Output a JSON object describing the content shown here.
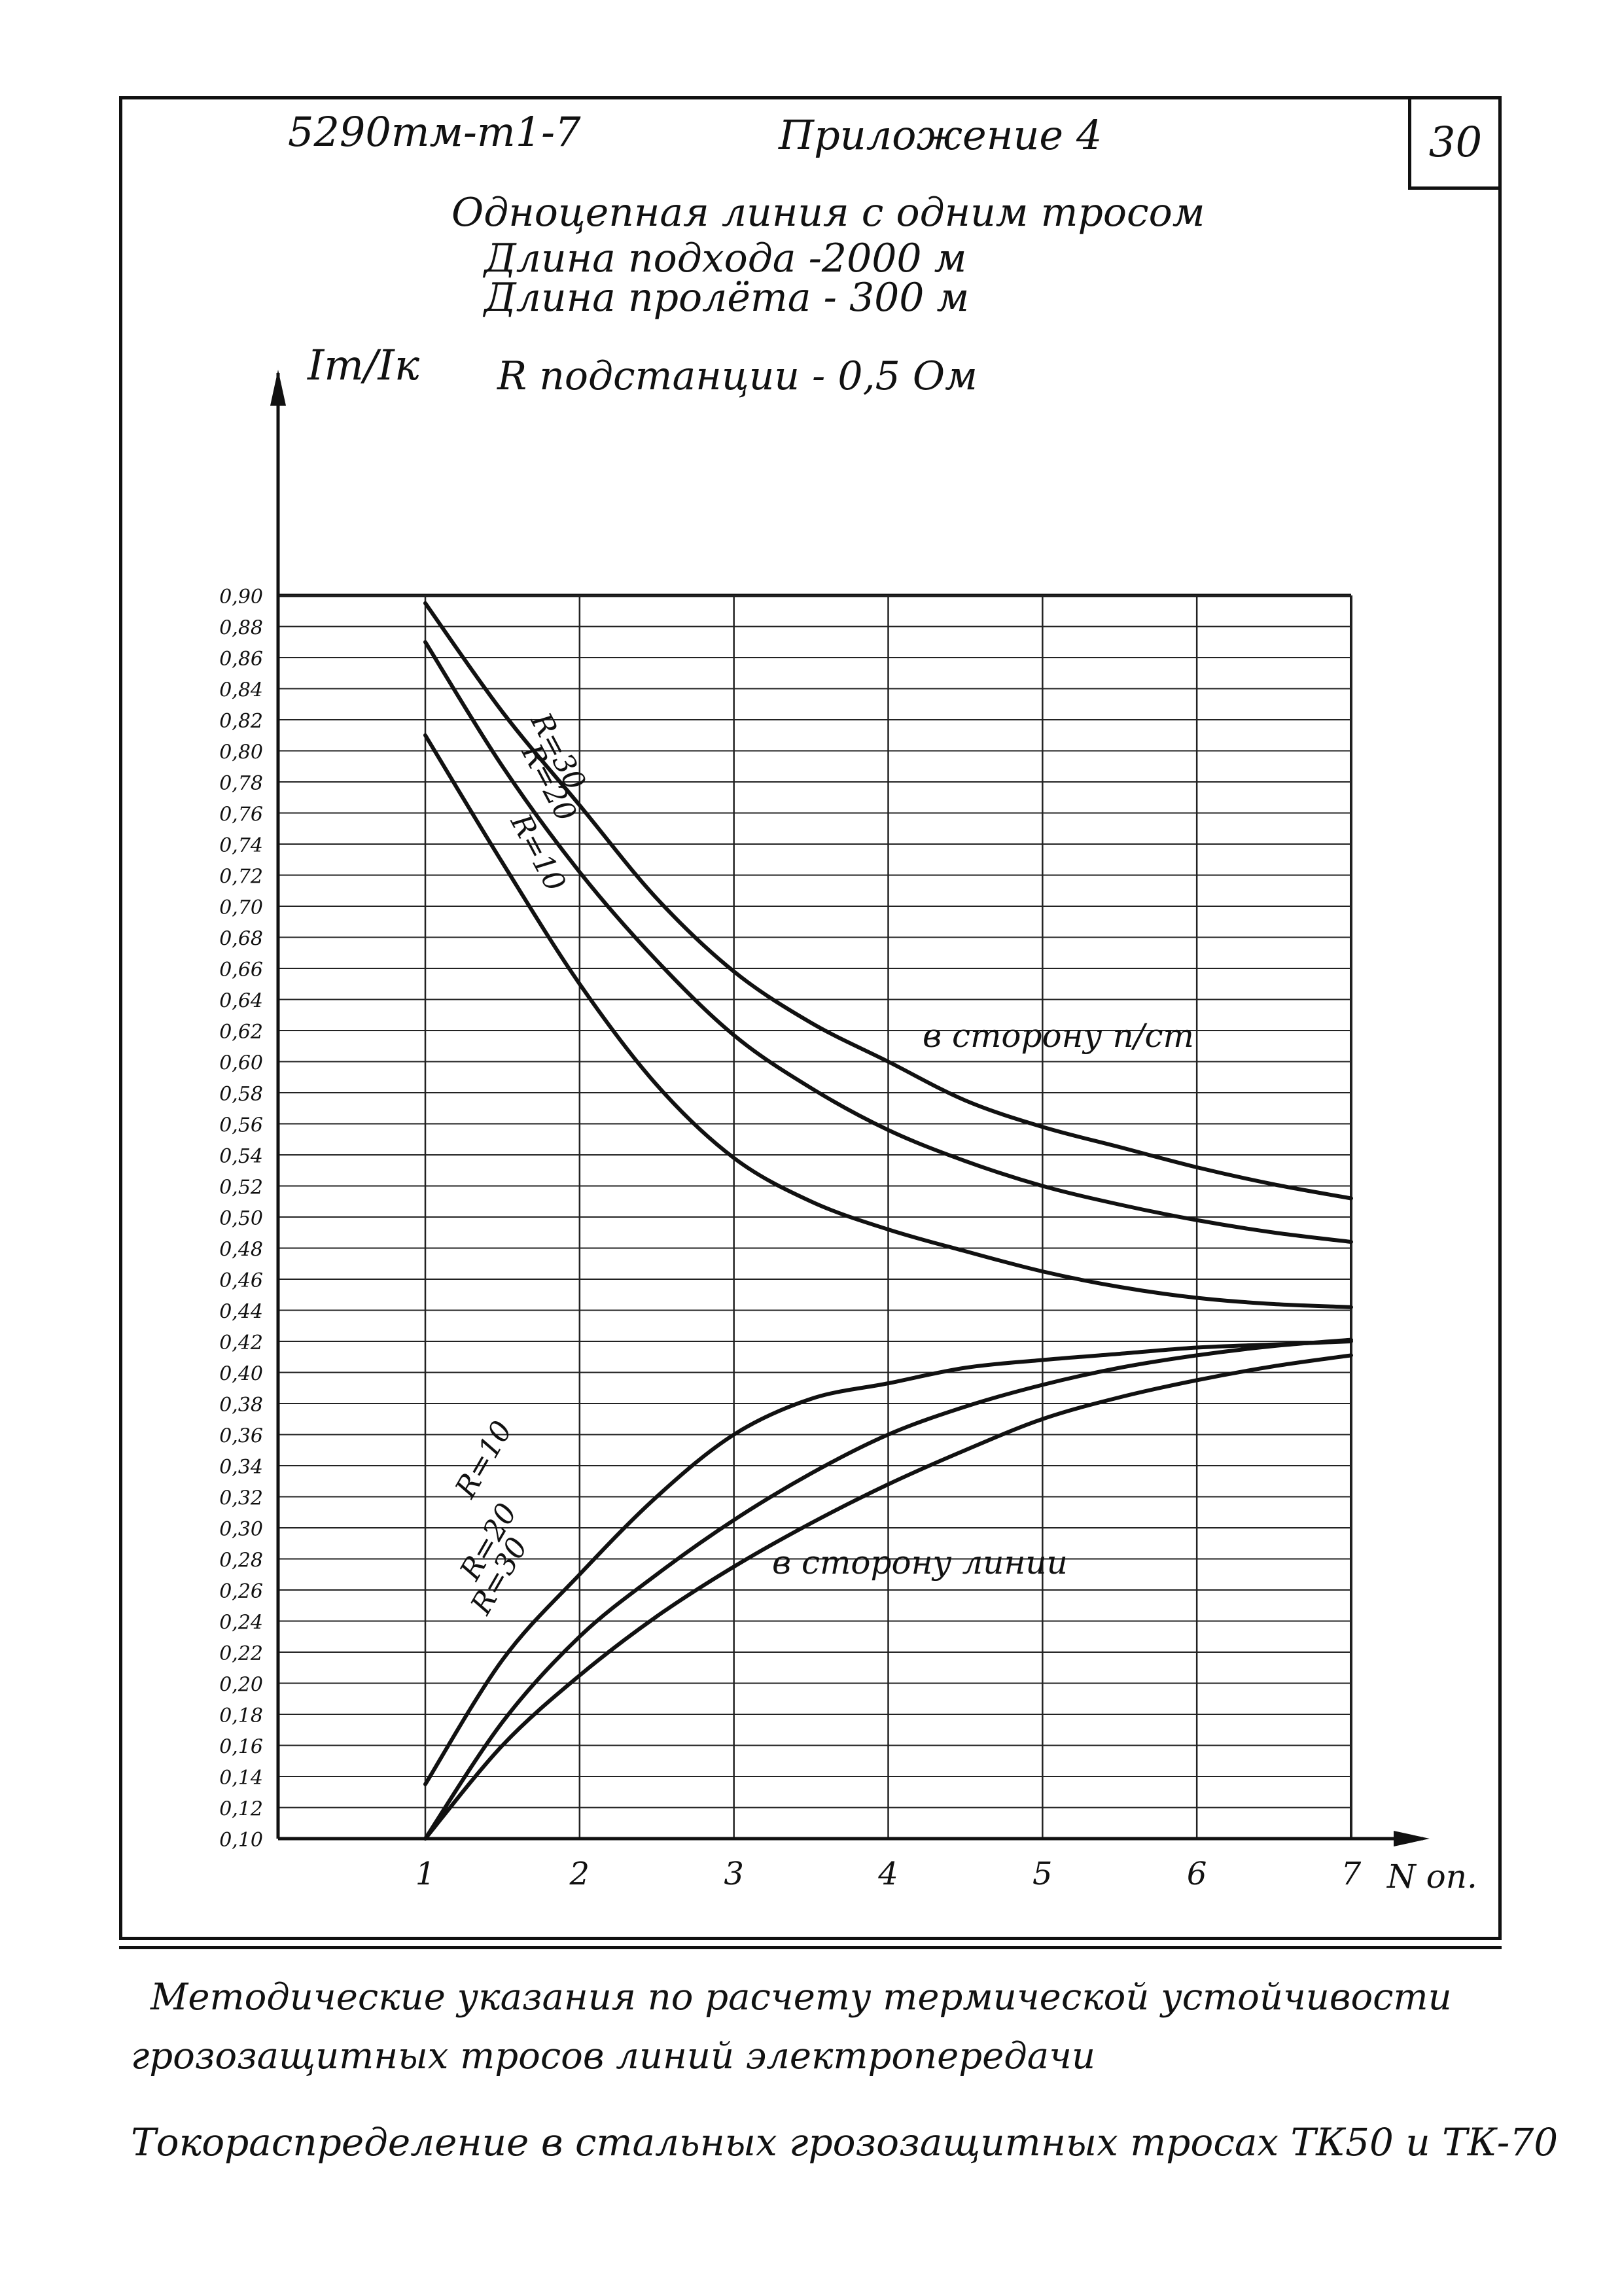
{
  "header": {
    "doc_code": "5290тм-т1-7",
    "appendix": "Приложение 4",
    "sheet_number": "30"
  },
  "title": {
    "line1": "Одноцепная линия с одним тросом",
    "line2": "Длина подхода -2000 м",
    "line3": "Длина пролёта - 300 м",
    "substation": "R подстанции - 0,5 Ом"
  },
  "chart_data": {
    "type": "line",
    "ylabel": "Iт/Iк",
    "xlabel": "N оп.",
    "xlim": [
      1,
      7
    ],
    "ylim": [
      0.1,
      0.9
    ],
    "x_ticks": [
      "1",
      "2",
      "3",
      "4",
      "5",
      "6",
      "7"
    ],
    "y_ticks": [
      "0,10",
      "0,12",
      "0,14",
      "0,16",
      "0,18",
      "0,20",
      "0,22",
      "0,24",
      "0,26",
      "0,28",
      "0,30",
      "0,32",
      "0,34",
      "0,36",
      "0,38",
      "0,40",
      "0,42",
      "0,44",
      "0,46",
      "0,48",
      "0,50",
      "0,52",
      "0,54",
      "0,56",
      "0,58",
      "0,60",
      "0,62",
      "0,64",
      "0,66",
      "0,68",
      "0,70",
      "0,72",
      "0,74",
      "0,76",
      "0,78",
      "0,80",
      "0,82",
      "0,84",
      "0,86",
      "0,88",
      "0,90"
    ],
    "grid": true,
    "x": [
      1,
      1.5,
      2,
      2.5,
      3,
      3.5,
      4,
      4.5,
      5,
      5.5,
      6,
      6.5,
      7
    ],
    "groups": [
      {
        "label": "в сторону п/ст",
        "series": [
          {
            "name": "R=30",
            "values": [
              0.895,
              0.825,
              0.765,
              0.705,
              0.658,
              0.625,
              0.6,
              0.575,
              0.558,
              0.545,
              0.532,
              0.521,
              0.512
            ]
          },
          {
            "name": "R=20",
            "values": [
              0.87,
              0.79,
              0.722,
              0.665,
              0.617,
              0.583,
              0.556,
              0.536,
              0.52,
              0.508,
              0.498,
              0.49,
              0.484
            ]
          },
          {
            "name": "R=10",
            "values": [
              0.81,
              0.728,
              0.65,
              0.585,
              0.538,
              0.51,
              0.492,
              0.478,
              0.465,
              0.455,
              0.448,
              0.444,
              0.442
            ]
          }
        ]
      },
      {
        "label": "в сторону линии",
        "series": [
          {
            "name": "R=10",
            "values": [
              0.135,
              0.215,
              0.27,
              0.32,
              0.36,
              0.383,
              0.393,
              0.403,
              0.408,
              0.412,
              0.416,
              0.418,
              0.42
            ]
          },
          {
            "name": "R=20",
            "values": [
              0.1,
              0.175,
              0.23,
              0.27,
              0.305,
              0.335,
              0.36,
              0.378,
              0.392,
              0.403,
              0.411,
              0.417,
              0.421
            ]
          },
          {
            "name": "R=30",
            "values": [
              0.1,
              0.16,
              0.205,
              0.243,
              0.275,
              0.303,
              0.328,
              0.35,
              0.37,
              0.384,
              0.395,
              0.404,
              0.411
            ]
          }
        ]
      }
    ]
  },
  "footer": {
    "line1": "Методические указания по расчету термической устойчивости",
    "line2": "грозозащитных тросов линий электропередачи",
    "line3": "Токораспределение в стальных грозозащитных тросах ТК50 и ТК-70"
  }
}
